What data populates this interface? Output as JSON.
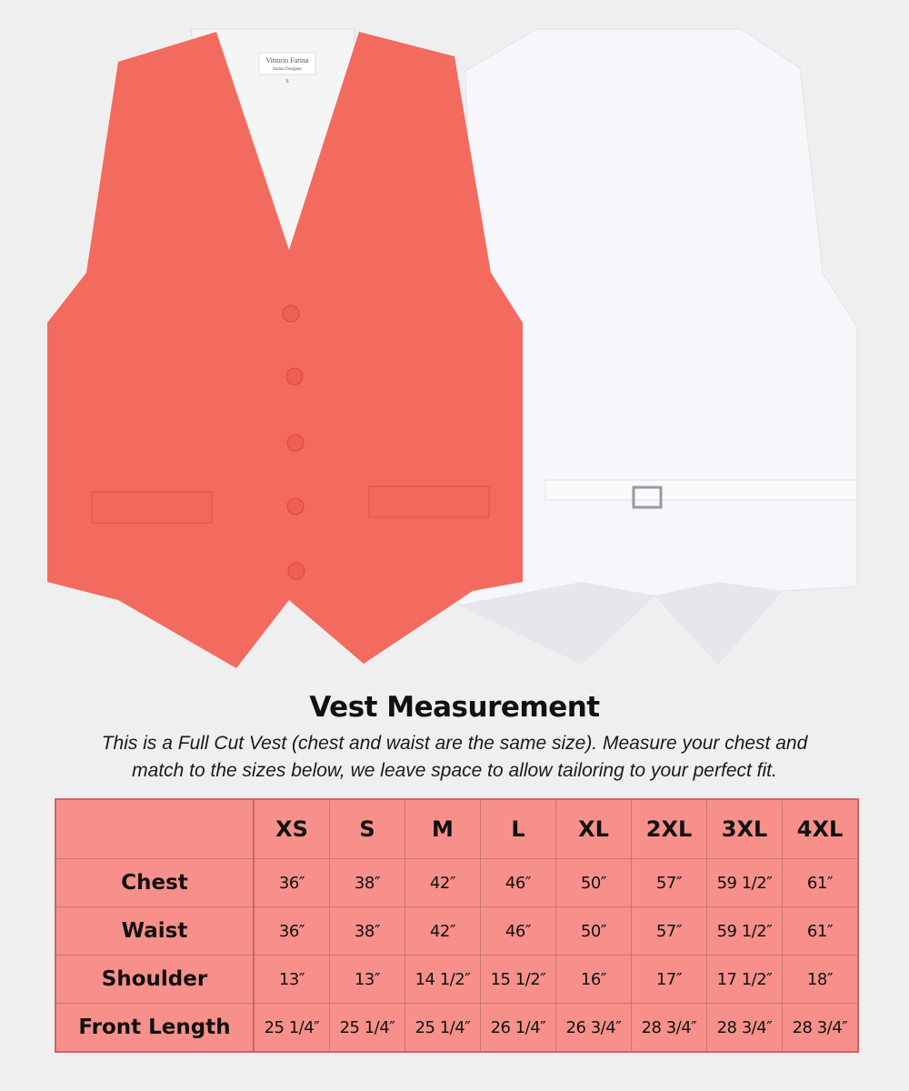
{
  "product_image": {
    "front_vest_color": "#f36b5e",
    "back_vest_color": "#f7f7fb",
    "label_brand": "Vittorio Farina",
    "label_subtitle": "Italian Designer",
    "label_size": "S"
  },
  "heading": "Vest Measurement",
  "description_line1": "This is a Full Cut Vest (chest and waist are the same size). Measure your chest and",
  "description_line2": "match to the sizes below, we leave space to allow tailoring to your perfect fit.",
  "size_table": {
    "fill_color": "#f7908a",
    "sizes": [
      "XS",
      "S",
      "M",
      "L",
      "XL",
      "2XL",
      "3XL",
      "4XL"
    ],
    "rows": [
      {
        "label": "Chest",
        "values": [
          "36″",
          "38″",
          "42″",
          "46″",
          "50″",
          "57″",
          "59 1/2″",
          "61″"
        ]
      },
      {
        "label": "Waist",
        "values": [
          "36″",
          "38″",
          "42″",
          "46″",
          "50″",
          "57″",
          "59 1/2″",
          "61″"
        ]
      },
      {
        "label": "Shoulder",
        "values": [
          "13″",
          "13″",
          "14 1/2″",
          "15 1/2″",
          "16″",
          "17″",
          "17 1/2″",
          "18″"
        ]
      },
      {
        "label": "Front Length",
        "values": [
          "25 1/4″",
          "25 1/4″",
          "25 1/4″",
          "26 1/4″",
          "26 3/4″",
          "28 3/4″",
          "28 3/4″",
          "28 3/4″"
        ]
      }
    ]
  }
}
